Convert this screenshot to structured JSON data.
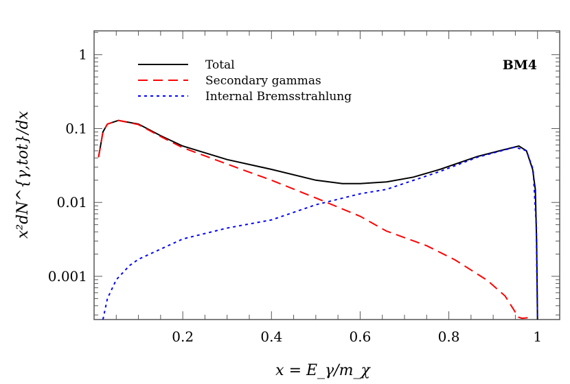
{
  "chart_data": {
    "type": "line",
    "title": "",
    "annotation": "BM4",
    "xlabel": "x = E_γ/m_χ",
    "ylabel": "x²dN^{γ,tot}/dx",
    "xlim": [
      0,
      1.05
    ],
    "ylim": [
      0.00026,
      2.1
    ],
    "yscale": "log",
    "grid": false,
    "legend_position": "top-left",
    "x_ticks": [
      0.2,
      0.4,
      0.6,
      0.8,
      1
    ],
    "x_tick_labels": [
      "0.2",
      "0.4",
      "0.6",
      "0.8",
      "1"
    ],
    "y_ticks": [
      0.001,
      0.01,
      0.1,
      1
    ],
    "y_tick_labels": [
      "0.001",
      "0.01",
      "0.1",
      "1"
    ],
    "series": [
      {
        "name": "Total",
        "color": "#000000",
        "style": "solid",
        "x": [
          0.01,
          0.02,
          0.03,
          0.055,
          0.1,
          0.15,
          0.2,
          0.3,
          0.4,
          0.5,
          0.56,
          0.6,
          0.66,
          0.72,
          0.78,
          0.865,
          0.92,
          0.958,
          0.975,
          0.989,
          0.995,
          0.998,
          1.0
        ],
        "y": [
          0.041,
          0.09,
          0.115,
          0.129,
          0.115,
          0.08,
          0.058,
          0.038,
          0.028,
          0.02,
          0.018,
          0.018,
          0.019,
          0.022,
          0.028,
          0.042,
          0.051,
          0.058,
          0.05,
          0.028,
          0.015,
          0.003,
          0.00026
        ]
      },
      {
        "name": "Secondary gammas",
        "color": "#ff0000",
        "style": "dashed",
        "x": [
          0.01,
          0.02,
          0.03,
          0.055,
          0.1,
          0.15,
          0.2,
          0.3,
          0.4,
          0.5,
          0.6,
          0.659,
          0.75,
          0.814,
          0.887,
          0.927,
          0.957,
          0.965,
          0.99
        ],
        "y": [
          0.041,
          0.09,
          0.115,
          0.129,
          0.113,
          0.078,
          0.055,
          0.033,
          0.02,
          0.0115,
          0.0065,
          0.0041,
          0.0026,
          0.00167,
          0.00088,
          0.00054,
          0.00028,
          0.00027,
          0.00028
        ]
      },
      {
        "name": "Internal Bremsstrahlung",
        "color": "#0000ff",
        "style": "dotted",
        "x": [
          0.02,
          0.03,
          0.05,
          0.08,
          0.1,
          0.2,
          0.3,
          0.4,
          0.5,
          0.6,
          0.659,
          0.778,
          0.865,
          0.949,
          0.975,
          0.99,
          0.997,
          1.0
        ],
        "y": [
          0.00026,
          0.0005,
          0.0009,
          0.0014,
          0.0017,
          0.0032,
          0.0045,
          0.0058,
          0.0093,
          0.0131,
          0.015,
          0.026,
          0.041,
          0.056,
          0.05,
          0.028,
          0.005,
          0.00026
        ]
      }
    ]
  }
}
